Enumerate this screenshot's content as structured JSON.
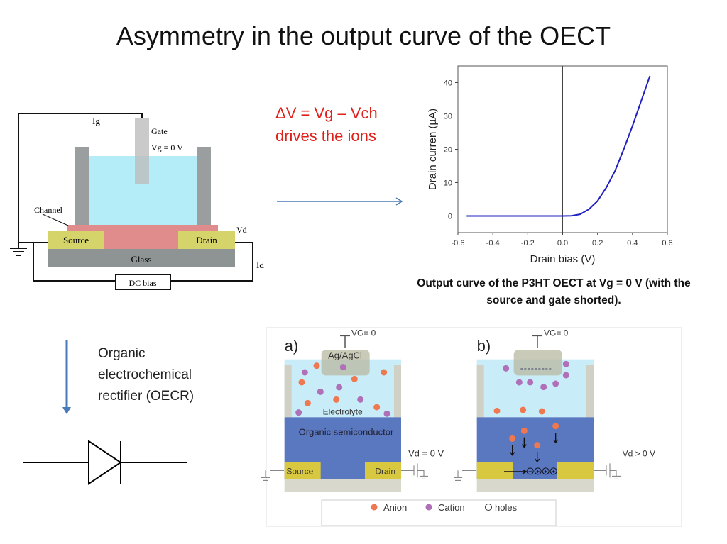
{
  "title": "Asymmetry in the output curve of the OECT",
  "equation": {
    "line1": "ΔV = Vg – Vch",
    "line2": "drives the ions"
  },
  "caption": "Output curve of the P3HT OECT at Vg = 0 V (with the source and gate shorted).",
  "oecr_label": {
    "line1": "Organic",
    "line2": "electrochemical",
    "line3": "rectifier (OECR)"
  },
  "setup_diagram": {
    "ig": "Ig",
    "gate": "Gate",
    "vg": "Vg = 0 V",
    "channel": "Channel",
    "vd": "Vd",
    "source": "Source",
    "drain": "Drain",
    "glass": "Glass",
    "id": "Id",
    "dc_bias": "DC bias"
  },
  "ion_diagram": {
    "a_label": "a)",
    "b_label": "b)",
    "vg_a": "VG= 0",
    "vg_b": "VG= 0",
    "electrode": "Ag/AgCl",
    "electrolyte": "Electrolyte",
    "semiconductor": "Organic semiconductor",
    "source": "Source",
    "drain": "Drain",
    "vd_a": "Vd = 0 V",
    "vd_b": "Vd > 0 V",
    "legend": {
      "anion": "Anion",
      "cation": "Cation",
      "holes": "holes"
    },
    "colors": {
      "anion": "#f07850",
      "cation": "#b070b8",
      "electrolyte": "#c8ecf8",
      "semiconductor": "#5a78c0",
      "contact": "#d8c840"
    }
  },
  "chart_data": {
    "type": "line",
    "xlabel": "Drain bias (V)",
    "ylabel": "Drain curren (µA)",
    "xlim": [
      -0.6,
      0.6
    ],
    "ylim": [
      -5,
      45
    ],
    "xticks": [
      -0.6,
      -0.4,
      -0.2,
      0.0,
      0.2,
      0.4,
      0.6
    ],
    "xtick_labels": [
      "-0.6",
      "-0.4",
      "-0.2",
      "0.0",
      "0.2",
      "0.4",
      "0.6"
    ],
    "yticks": [
      0,
      10,
      20,
      30,
      40
    ],
    "ytick_labels": [
      "0",
      "10",
      "20",
      "30",
      "40"
    ],
    "grid": false,
    "color": "#2020c0",
    "x": [
      -0.55,
      -0.3,
      0,
      0.05,
      0.1,
      0.15,
      0.2,
      0.25,
      0.3,
      0.35,
      0.4,
      0.45,
      0.5
    ],
    "y": [
      0,
      0,
      0,
      0.05,
      0.5,
      2,
      4.5,
      8.5,
      13.5,
      20,
      27,
      34.5,
      42
    ]
  }
}
